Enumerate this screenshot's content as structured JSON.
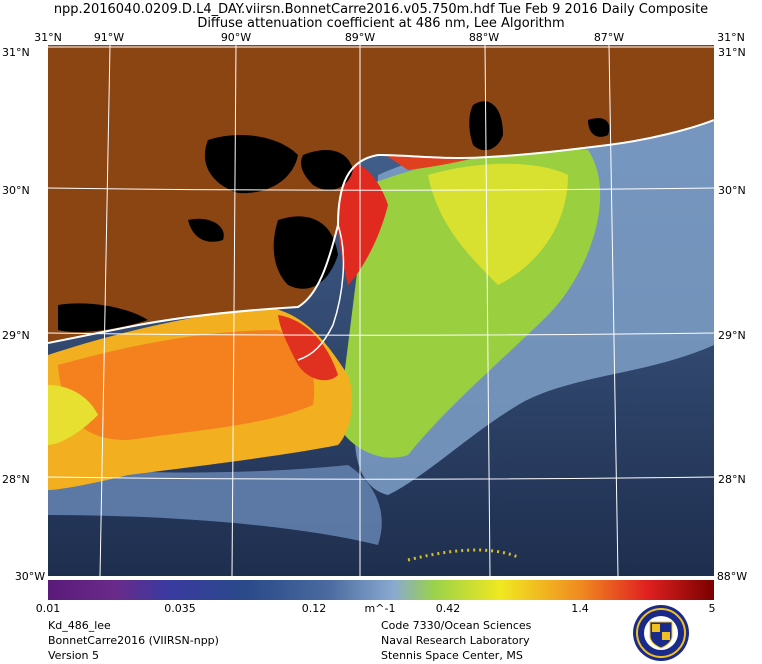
{
  "header": {
    "line1": "npp.2016040.0209.D.L4_DAY.viirsn.BonnetCarre2016.v05.750m.hdf     Tue Feb  9 2016 Daily Composite",
    "line2": "Diffuse attenuation coefficient at 486 nm, Lee Algorithm"
  },
  "map": {
    "region": "Mississippi Bight / Northern Gulf of Mexico",
    "lon_range": [
      -91.5,
      -86.75
    ],
    "lat_range": [
      27.6,
      31.0
    ],
    "lon_ticks": [
      "91°W",
      "90°W",
      "89°W",
      "88°W",
      "87°W"
    ],
    "lat_ticks": [
      "31°N",
      "30°N",
      "29°N",
      "28°N"
    ],
    "corner_labels": {
      "top_left": "31°N",
      "top_right": "31°N",
      "bottom_left": "30°W",
      "bottom_right": "88°W"
    },
    "land_color": "#8b4513",
    "nodata_color": "#000000",
    "coast_color": "#ffffff",
    "grid_color": "#ffffff"
  },
  "colorbar": {
    "unit": "m^-1",
    "tick_labels": [
      "0.01",
      "0.035",
      "0.12",
      "0.42",
      "1.4",
      "5"
    ],
    "scale": "log",
    "range": [
      0.01,
      5
    ],
    "colors": [
      "#5a1a7a",
      "#3a3aa0",
      "#2a4a8a",
      "#4a6aa0",
      "#8aaad0",
      "#9ad24a",
      "#f0e820",
      "#f08a20",
      "#e02020",
      "#7a0000"
    ]
  },
  "footer": {
    "left": [
      "Kd_486_lee",
      "BonnetCarre2016 (VIIRSN-npp)",
      "Version 5"
    ],
    "right": [
      "Code 7330/Ocean Sciences",
      "Naval Research Laboratory",
      "Stennis Space Center, MS"
    ]
  },
  "logo": {
    "icon": "nrl-seal-icon"
  }
}
